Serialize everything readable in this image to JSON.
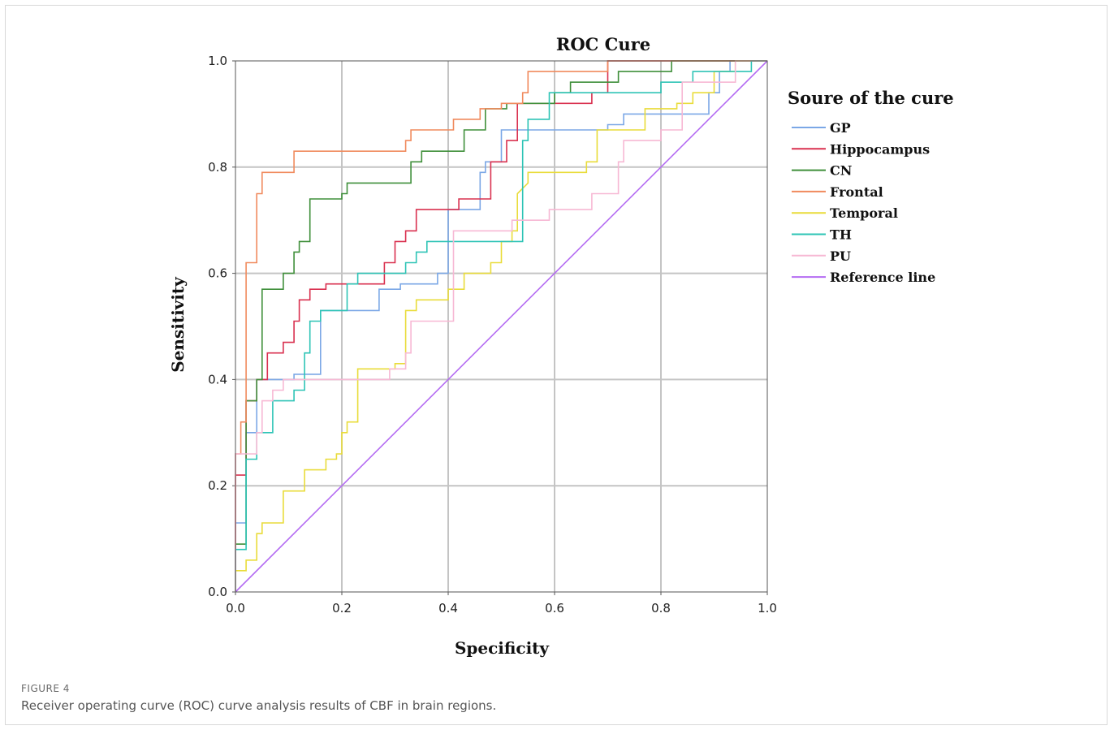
{
  "figure": {
    "label": "FIGURE 4",
    "caption": "Receiver operating curve (ROC) curve analysis results of CBF in brain regions."
  },
  "chart_data": {
    "type": "line",
    "title": "ROC Cure",
    "xlabel": "Specificity",
    "ylabel": "Sensitivity",
    "xlim": [
      0,
      1
    ],
    "ylim": [
      0,
      1
    ],
    "xticks": [
      "0.0",
      "0.2",
      "0.4",
      "0.6",
      "0.8",
      "1.0"
    ],
    "yticks": [
      "0.0",
      "0.2",
      "0.4",
      "0.6",
      "0.8",
      "1.0"
    ],
    "grid": true,
    "legend_title": "Soure of the cure",
    "legend_position": "right",
    "series": [
      {
        "name": "GP",
        "color": "#7ba7e6",
        "points": [
          [
            0,
            0
          ],
          [
            0,
            0.13
          ],
          [
            0.02,
            0.13
          ],
          [
            0.02,
            0.3
          ],
          [
            0.04,
            0.3
          ],
          [
            0.04,
            0.4
          ],
          [
            0.11,
            0.4
          ],
          [
            0.11,
            0.41
          ],
          [
            0.16,
            0.41
          ],
          [
            0.16,
            0.53
          ],
          [
            0.27,
            0.53
          ],
          [
            0.27,
            0.57
          ],
          [
            0.31,
            0.57
          ],
          [
            0.31,
            0.58
          ],
          [
            0.38,
            0.58
          ],
          [
            0.38,
            0.6
          ],
          [
            0.4,
            0.6
          ],
          [
            0.4,
            0.72
          ],
          [
            0.46,
            0.72
          ],
          [
            0.46,
            0.79
          ],
          [
            0.47,
            0.79
          ],
          [
            0.47,
            0.81
          ],
          [
            0.5,
            0.81
          ],
          [
            0.5,
            0.87
          ],
          [
            0.7,
            0.87
          ],
          [
            0.7,
            0.88
          ],
          [
            0.73,
            0.88
          ],
          [
            0.73,
            0.9
          ],
          [
            0.89,
            0.9
          ],
          [
            0.89,
            0.94
          ],
          [
            0.91,
            0.94
          ],
          [
            0.91,
            0.98
          ],
          [
            0.93,
            0.98
          ],
          [
            0.93,
            1
          ],
          [
            1,
            1
          ]
        ]
      },
      {
        "name": "Hippocampus",
        "color": "#d9304f",
        "points": [
          [
            0,
            0
          ],
          [
            0,
            0.22
          ],
          [
            0.02,
            0.22
          ],
          [
            0.02,
            0.36
          ],
          [
            0.04,
            0.36
          ],
          [
            0.04,
            0.4
          ],
          [
            0.06,
            0.4
          ],
          [
            0.06,
            0.45
          ],
          [
            0.09,
            0.45
          ],
          [
            0.09,
            0.47
          ],
          [
            0.11,
            0.47
          ],
          [
            0.11,
            0.51
          ],
          [
            0.12,
            0.51
          ],
          [
            0.12,
            0.55
          ],
          [
            0.14,
            0.55
          ],
          [
            0.14,
            0.57
          ],
          [
            0.17,
            0.57
          ],
          [
            0.17,
            0.58
          ],
          [
            0.28,
            0.58
          ],
          [
            0.28,
            0.62
          ],
          [
            0.3,
            0.62
          ],
          [
            0.3,
            0.66
          ],
          [
            0.32,
            0.66
          ],
          [
            0.32,
            0.68
          ],
          [
            0.34,
            0.68
          ],
          [
            0.34,
            0.72
          ],
          [
            0.42,
            0.72
          ],
          [
            0.42,
            0.74
          ],
          [
            0.48,
            0.74
          ],
          [
            0.48,
            0.81
          ],
          [
            0.51,
            0.81
          ],
          [
            0.51,
            0.85
          ],
          [
            0.53,
            0.85
          ],
          [
            0.53,
            0.92
          ],
          [
            0.67,
            0.92
          ],
          [
            0.67,
            0.94
          ],
          [
            0.7,
            0.94
          ],
          [
            0.7,
            1
          ],
          [
            1,
            1
          ]
        ]
      },
      {
        "name": "CN",
        "color": "#3f8f3a",
        "points": [
          [
            0,
            0
          ],
          [
            0,
            0.09
          ],
          [
            0.02,
            0.09
          ],
          [
            0.02,
            0.36
          ],
          [
            0.04,
            0.36
          ],
          [
            0.04,
            0.4
          ],
          [
            0.05,
            0.4
          ],
          [
            0.05,
            0.57
          ],
          [
            0.09,
            0.57
          ],
          [
            0.09,
            0.6
          ],
          [
            0.11,
            0.6
          ],
          [
            0.11,
            0.64
          ],
          [
            0.12,
            0.64
          ],
          [
            0.12,
            0.66
          ],
          [
            0.14,
            0.66
          ],
          [
            0.14,
            0.74
          ],
          [
            0.2,
            0.74
          ],
          [
            0.2,
            0.75
          ],
          [
            0.21,
            0.75
          ],
          [
            0.21,
            0.77
          ],
          [
            0.33,
            0.77
          ],
          [
            0.33,
            0.81
          ],
          [
            0.35,
            0.81
          ],
          [
            0.35,
            0.83
          ],
          [
            0.43,
            0.83
          ],
          [
            0.43,
            0.87
          ],
          [
            0.47,
            0.87
          ],
          [
            0.47,
            0.91
          ],
          [
            0.51,
            0.91
          ],
          [
            0.51,
            0.92
          ],
          [
            0.6,
            0.92
          ],
          [
            0.6,
            0.94
          ],
          [
            0.63,
            0.94
          ],
          [
            0.63,
            0.96
          ],
          [
            0.72,
            0.96
          ],
          [
            0.72,
            0.98
          ],
          [
            0.82,
            0.98
          ],
          [
            0.82,
            1
          ],
          [
            1,
            1
          ]
        ]
      },
      {
        "name": "Frontal",
        "color": "#f08a5d",
        "points": [
          [
            0,
            0
          ],
          [
            0,
            0.26
          ],
          [
            0.01,
            0.26
          ],
          [
            0.01,
            0.32
          ],
          [
            0.02,
            0.32
          ],
          [
            0.02,
            0.62
          ],
          [
            0.04,
            0.62
          ],
          [
            0.04,
            0.75
          ],
          [
            0.05,
            0.75
          ],
          [
            0.05,
            0.79
          ],
          [
            0.11,
            0.79
          ],
          [
            0.11,
            0.83
          ],
          [
            0.32,
            0.83
          ],
          [
            0.32,
            0.85
          ],
          [
            0.33,
            0.85
          ],
          [
            0.33,
            0.87
          ],
          [
            0.41,
            0.87
          ],
          [
            0.41,
            0.89
          ],
          [
            0.46,
            0.89
          ],
          [
            0.46,
            0.91
          ],
          [
            0.5,
            0.91
          ],
          [
            0.5,
            0.92
          ],
          [
            0.54,
            0.92
          ],
          [
            0.54,
            0.94
          ],
          [
            0.55,
            0.94
          ],
          [
            0.55,
            0.98
          ],
          [
            0.7,
            0.98
          ],
          [
            0.7,
            1
          ],
          [
            1,
            1
          ]
        ]
      },
      {
        "name": "Temporal",
        "color": "#e9dc3a",
        "points": [
          [
            0,
            0
          ],
          [
            0,
            0.04
          ],
          [
            0.02,
            0.04
          ],
          [
            0.02,
            0.06
          ],
          [
            0.04,
            0.06
          ],
          [
            0.04,
            0.11
          ],
          [
            0.05,
            0.11
          ],
          [
            0.05,
            0.13
          ],
          [
            0.09,
            0.13
          ],
          [
            0.09,
            0.19
          ],
          [
            0.13,
            0.19
          ],
          [
            0.13,
            0.23
          ],
          [
            0.17,
            0.23
          ],
          [
            0.17,
            0.25
          ],
          [
            0.19,
            0.25
          ],
          [
            0.19,
            0.26
          ],
          [
            0.2,
            0.26
          ],
          [
            0.2,
            0.3
          ],
          [
            0.21,
            0.3
          ],
          [
            0.21,
            0.32
          ],
          [
            0.23,
            0.32
          ],
          [
            0.23,
            0.42
          ],
          [
            0.3,
            0.42
          ],
          [
            0.3,
            0.43
          ],
          [
            0.32,
            0.43
          ],
          [
            0.32,
            0.53
          ],
          [
            0.34,
            0.53
          ],
          [
            0.34,
            0.55
          ],
          [
            0.4,
            0.55
          ],
          [
            0.4,
            0.57
          ],
          [
            0.43,
            0.57
          ],
          [
            0.43,
            0.6
          ],
          [
            0.48,
            0.6
          ],
          [
            0.48,
            0.62
          ],
          [
            0.5,
            0.62
          ],
          [
            0.5,
            0.66
          ],
          [
            0.52,
            0.66
          ],
          [
            0.52,
            0.68
          ],
          [
            0.53,
            0.68
          ],
          [
            0.53,
            0.75
          ],
          [
            0.55,
            0.77
          ],
          [
            0.55,
            0.79
          ],
          [
            0.66,
            0.79
          ],
          [
            0.66,
            0.81
          ],
          [
            0.68,
            0.81
          ],
          [
            0.68,
            0.87
          ],
          [
            0.77,
            0.87
          ],
          [
            0.77,
            0.91
          ],
          [
            0.83,
            0.91
          ],
          [
            0.83,
            0.92
          ],
          [
            0.86,
            0.92
          ],
          [
            0.86,
            0.94
          ],
          [
            0.9,
            0.94
          ],
          [
            0.9,
            0.98
          ],
          [
            0.94,
            0.98
          ],
          [
            0.94,
            1
          ],
          [
            1,
            1
          ]
        ]
      },
      {
        "name": "TH",
        "color": "#2ec4b6",
        "points": [
          [
            0,
            0
          ],
          [
            0,
            0.08
          ],
          [
            0.02,
            0.08
          ],
          [
            0.02,
            0.25
          ],
          [
            0.04,
            0.25
          ],
          [
            0.04,
            0.3
          ],
          [
            0.07,
            0.3
          ],
          [
            0.07,
            0.36
          ],
          [
            0.11,
            0.36
          ],
          [
            0.11,
            0.38
          ],
          [
            0.13,
            0.38
          ],
          [
            0.13,
            0.45
          ],
          [
            0.14,
            0.45
          ],
          [
            0.14,
            0.51
          ],
          [
            0.16,
            0.51
          ],
          [
            0.16,
            0.53
          ],
          [
            0.21,
            0.53
          ],
          [
            0.21,
            0.58
          ],
          [
            0.23,
            0.58
          ],
          [
            0.23,
            0.6
          ],
          [
            0.32,
            0.6
          ],
          [
            0.32,
            0.62
          ],
          [
            0.34,
            0.62
          ],
          [
            0.34,
            0.64
          ],
          [
            0.36,
            0.64
          ],
          [
            0.36,
            0.66
          ],
          [
            0.54,
            0.66
          ],
          [
            0.54,
            0.85
          ],
          [
            0.55,
            0.85
          ],
          [
            0.55,
            0.89
          ],
          [
            0.59,
            0.89
          ],
          [
            0.59,
            0.94
          ],
          [
            0.8,
            0.94
          ],
          [
            0.8,
            0.96
          ],
          [
            0.86,
            0.96
          ],
          [
            0.86,
            0.98
          ],
          [
            0.97,
            0.98
          ],
          [
            0.97,
            1
          ],
          [
            1,
            1
          ]
        ]
      },
      {
        "name": "PU",
        "color": "#f7b8d4",
        "points": [
          [
            0,
            0
          ],
          [
            0,
            0.26
          ],
          [
            0.04,
            0.26
          ],
          [
            0.04,
            0.3
          ],
          [
            0.05,
            0.3
          ],
          [
            0.05,
            0.36
          ],
          [
            0.07,
            0.36
          ],
          [
            0.07,
            0.38
          ],
          [
            0.09,
            0.38
          ],
          [
            0.09,
            0.4
          ],
          [
            0.29,
            0.4
          ],
          [
            0.29,
            0.42
          ],
          [
            0.32,
            0.42
          ],
          [
            0.32,
            0.45
          ],
          [
            0.33,
            0.45
          ],
          [
            0.33,
            0.51
          ],
          [
            0.41,
            0.51
          ],
          [
            0.41,
            0.68
          ],
          [
            0.52,
            0.68
          ],
          [
            0.52,
            0.7
          ],
          [
            0.59,
            0.7
          ],
          [
            0.59,
            0.72
          ],
          [
            0.67,
            0.72
          ],
          [
            0.67,
            0.75
          ],
          [
            0.72,
            0.75
          ],
          [
            0.72,
            0.81
          ],
          [
            0.73,
            0.81
          ],
          [
            0.73,
            0.85
          ],
          [
            0.8,
            0.85
          ],
          [
            0.8,
            0.87
          ],
          [
            0.84,
            0.87
          ],
          [
            0.84,
            0.96
          ],
          [
            0.94,
            0.96
          ],
          [
            0.94,
            1
          ],
          [
            1,
            1
          ]
        ]
      },
      {
        "name": "Reference line",
        "color": "#b46cf2",
        "points": [
          [
            0,
            0
          ],
          [
            1,
            1
          ]
        ]
      }
    ]
  }
}
